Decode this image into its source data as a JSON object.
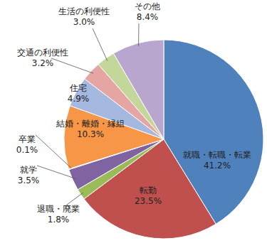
{
  "chart_data": {
    "type": "pie",
    "categories": [
      "就職・転職・転業",
      "転勤",
      "退職・廃業",
      "就学",
      "卒業",
      "結婚・離婚・縁組",
      "住宅",
      "交通の利便性",
      "生活の利便性",
      "その他"
    ],
    "values": [
      41.2,
      23.5,
      1.8,
      3.5,
      0.1,
      10.3,
      4.9,
      3.2,
      3.0,
      8.4
    ],
    "value_labels": [
      "41.2%",
      "23.5%",
      "1.8%",
      "3.5%",
      "0.1%",
      "10.3%",
      "4.9%",
      "3.2%",
      "3.0%",
      "8.4%"
    ],
    "colors": [
      "#4f81bd",
      "#c0504d",
      "#9bbb59",
      "#8064a2",
      "#4bacc6",
      "#f79646",
      "#a5b8e0",
      "#e4a5a3",
      "#c4d79b",
      "#b8a6cf"
    ],
    "data_labels": true
  }
}
